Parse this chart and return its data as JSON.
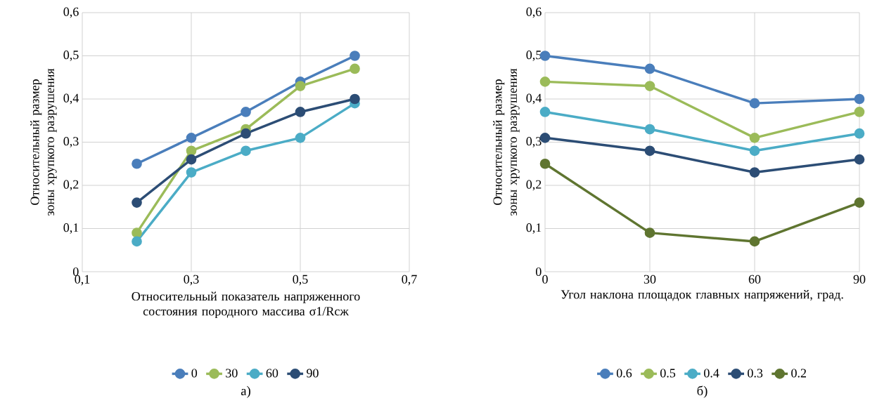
{
  "chart_data": [
    {
      "type": "line",
      "xlabel": "Относительный показатель напряженного состояния породного массива σ1/Rсж",
      "ylabel": "Относительный размер зоны хрупкого разрушения",
      "x": [
        0.2,
        0.3,
        0.4,
        0.5,
        0.6
      ],
      "xlim": [
        0.1,
        0.7
      ],
      "xticks": [
        {
          "value": 0.1,
          "label": "0,1"
        },
        {
          "value": 0.3,
          "label": "0,3"
        },
        {
          "value": 0.5,
          "label": "0,5"
        },
        {
          "value": 0.7,
          "label": "0,7"
        }
      ],
      "ylim": [
        0,
        0.6
      ],
      "yticks": [
        0,
        {
          "value": 0.1,
          "label": "0,1"
        },
        {
          "value": 0.2,
          "label": "0,2"
        },
        {
          "value": 0.3,
          "label": "0,3"
        },
        {
          "value": 0.4,
          "label": "0,4"
        },
        {
          "value": 0.5,
          "label": "0,5"
        },
        {
          "value": 0.6,
          "label": "0,6"
        }
      ],
      "grid": true,
      "legend": "bottom",
      "marker": "circle",
      "line_style": "solid",
      "annotations": [
        "а)"
      ],
      "series": [
        {
          "name": "0",
          "color": "#4a7ebb",
          "values": [
            0.25,
            0.31,
            0.37,
            0.44,
            0.5
          ]
        },
        {
          "name": "30",
          "color": "#9bbb59",
          "values": [
            0.09,
            0.28,
            0.33,
            0.43,
            0.47
          ]
        },
        {
          "name": "60",
          "color": "#4bacc6",
          "values": [
            0.07,
            0.23,
            0.28,
            0.31,
            0.39
          ]
        },
        {
          "name": "90",
          "color": "#2c4d75",
          "values": [
            0.16,
            0.26,
            0.32,
            0.37,
            0.4
          ]
        }
      ]
    },
    {
      "type": "line",
      "xlabel": "Угол наклона площадок главных напряжений, град.",
      "ylabel": "Относительный размер зоны хрупкого разрушения",
      "x": [
        0,
        30,
        60,
        90
      ],
      "xlim": [
        0,
        90
      ],
      "xticks": [
        0,
        30,
        60,
        90
      ],
      "ylim": [
        0,
        0.6
      ],
      "yticks": [
        0,
        {
          "value": 0.1,
          "label": "0,1"
        },
        {
          "value": 0.2,
          "label": "0,2"
        },
        {
          "value": 0.3,
          "label": "0,3"
        },
        {
          "value": 0.4,
          "label": "0,4"
        },
        {
          "value": 0.5,
          "label": "0,5"
        },
        {
          "value": 0.6,
          "label": "0,6"
        }
      ],
      "grid": true,
      "legend": "bottom",
      "marker": "circle",
      "line_style": "solid",
      "annotations": [
        "б)"
      ],
      "series": [
        {
          "name": "0.6",
          "color": "#4a7ebb",
          "values": [
            0.5,
            0.47,
            0.39,
            0.4
          ]
        },
        {
          "name": "0.5",
          "color": "#9bbb59",
          "values": [
            0.44,
            0.43,
            0.31,
            0.37
          ]
        },
        {
          "name": "0.4",
          "color": "#4bacc6",
          "values": [
            0.37,
            0.33,
            0.28,
            0.32
          ]
        },
        {
          "name": "0.3",
          "color": "#2c4d75",
          "values": [
            0.31,
            0.28,
            0.23,
            0.26
          ]
        },
        {
          "name": "0.2",
          "color": "#5f7530",
          "values": [
            0.25,
            0.09,
            0.07,
            0.16
          ]
        }
      ]
    }
  ]
}
